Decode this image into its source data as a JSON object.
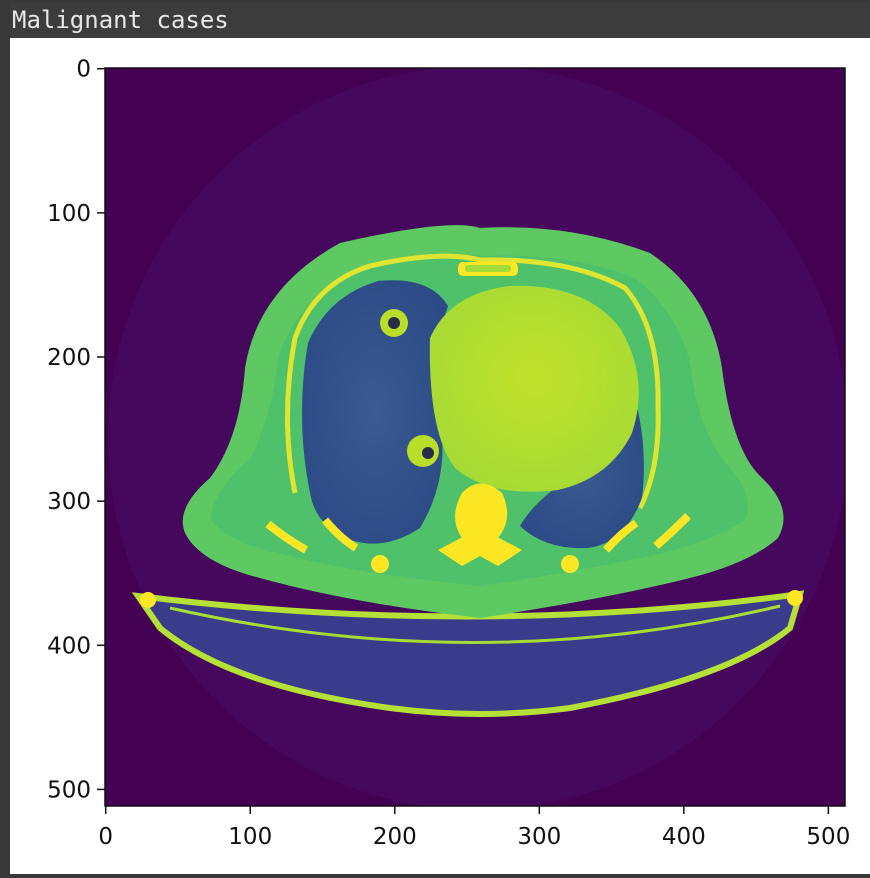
{
  "output": {
    "title": "Malignant cases"
  },
  "figure": {
    "kind": "image",
    "colormap": "viridis",
    "image_width": 512,
    "image_height": 512,
    "xaxis": {
      "ticks": [
        "0",
        "100",
        "200",
        "300",
        "400",
        "500"
      ],
      "tick_values": [
        0,
        100,
        200,
        300,
        400,
        500
      ]
    },
    "yaxis": {
      "ticks": [
        "0",
        "100",
        "200",
        "300",
        "400",
        "500"
      ],
      "tick_values": [
        0,
        100,
        200,
        300,
        400,
        500
      ]
    },
    "colors": {
      "background": "#440154",
      "scan_circle": "#46085c",
      "body": "#5ec962",
      "body_dark": "#35b779",
      "lung": "#31688e",
      "heart": "#b8de29",
      "bone": "#fde725",
      "table": "#3b4a8a"
    }
  }
}
